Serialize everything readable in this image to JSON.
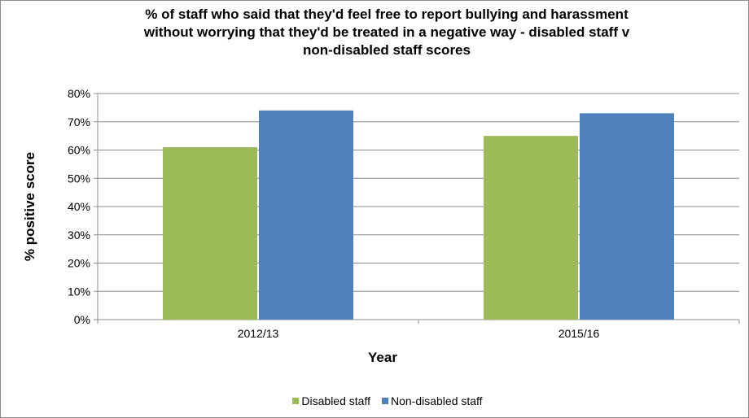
{
  "chart_data": {
    "type": "bar",
    "title_lines": [
      "% of staff who said that they'd feel free to report bullying and harassment",
      "without worrying that they'd be treated in a negative way - disabled staff v",
      "non-disabled staff scores"
    ],
    "xlabel": "Year",
    "ylabel": "% positive score",
    "categories": [
      "2012/13",
      "2015/16"
    ],
    "series": [
      {
        "name": "Disabled staff",
        "color": "#9bbb59",
        "values": [
          61,
          65
        ]
      },
      {
        "name": "Non-disabled staff",
        "color": "#4f81bd",
        "values": [
          74,
          73
        ]
      }
    ],
    "ylim": [
      0,
      80
    ],
    "yticks": [
      0,
      10,
      20,
      30,
      40,
      50,
      60,
      70,
      80
    ],
    "ytick_labels": [
      "0%",
      "10%",
      "20%",
      "30%",
      "40%",
      "50%",
      "60%",
      "70%",
      "80%"
    ],
    "grid": true,
    "legend_position": "bottom"
  }
}
